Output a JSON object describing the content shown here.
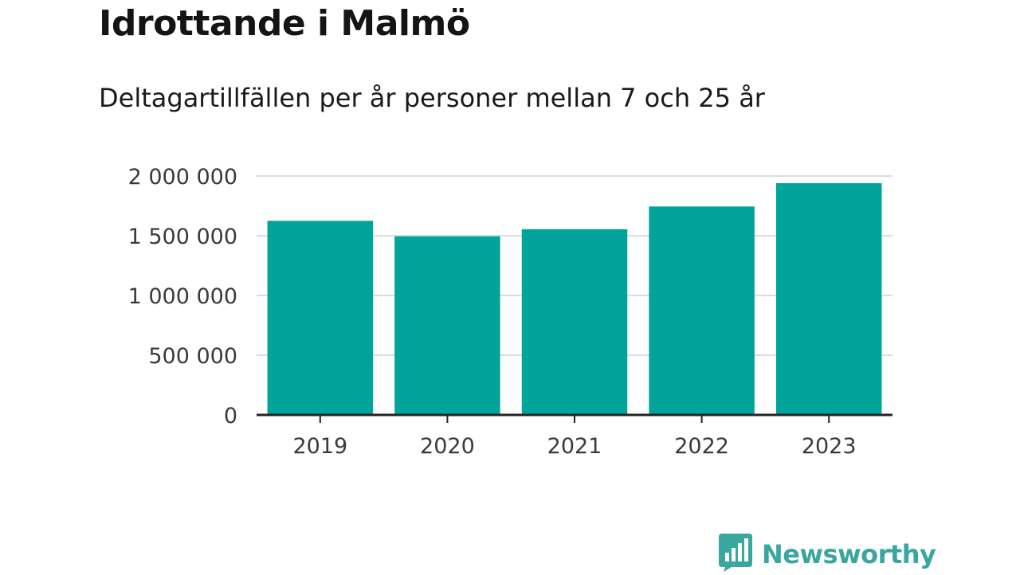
{
  "title": "Idrottande i Malmö",
  "subtitle": "Deltagartillfällen per år personer mellan 7 och 25 år",
  "brand": {
    "name": "Newsworthy",
    "icon": "bar-chart-speech-bubble-icon",
    "color": "#3aa6a0"
  },
  "chart_data": {
    "type": "bar",
    "title": "Idrottande i Malmö",
    "subtitle": "Deltagartillfällen per år personer mellan 7 och 25 år",
    "categories": [
      "2019",
      "2020",
      "2021",
      "2022",
      "2023"
    ],
    "values": [
      1625000,
      1495000,
      1555000,
      1745000,
      1940000
    ],
    "ylim": [
      0,
      2000000
    ],
    "yticks": [
      0,
      500000,
      1000000,
      1500000,
      2000000
    ],
    "ytick_labels": [
      "0",
      "500 000",
      "1 000 000",
      "1 500 000",
      "2 000 000"
    ],
    "bar_color": "#00a499",
    "grid": true,
    "legend": "none"
  }
}
